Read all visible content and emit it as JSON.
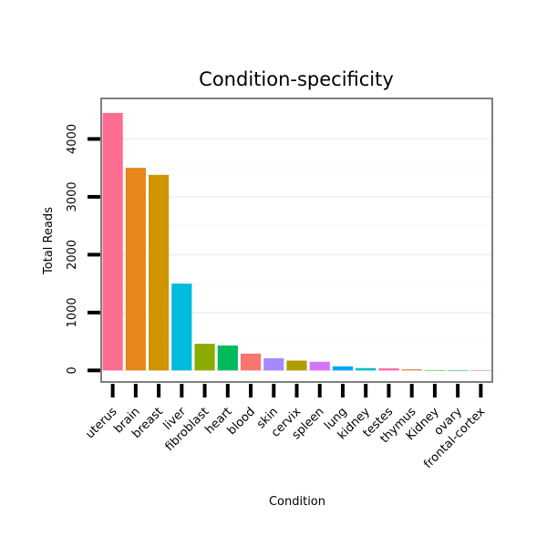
{
  "chart_data": {
    "type": "bar",
    "title": "Condition-specificity",
    "xlabel": "Condition",
    "ylabel": "Total Reads",
    "categories": [
      "uterus",
      "brain",
      "breast",
      "liver",
      "fibroblast",
      "heart",
      "blood",
      "skin",
      "cervix",
      "spleen",
      "lung",
      "kidney",
      "testes",
      "thymus",
      "Kidney",
      "ovary",
      "frontal-cortex"
    ],
    "values": [
      4450,
      3500,
      3380,
      1500,
      460,
      430,
      290,
      210,
      170,
      150,
      70,
      40,
      35,
      20,
      5,
      3,
      2
    ],
    "colors": [
      "#FF6C91",
      "#E7861A",
      "#CF9400",
      "#00BBDC",
      "#8CAB00",
      "#00BA5C",
      "#F8766D",
      "#A58AFF",
      "#B09C00",
      "#D575FE",
      "#00A5FF",
      "#00BFC4",
      "#FF66A8",
      "#EE8A43",
      "#3DB52C",
      "#00C08B",
      "#E76BF3"
    ],
    "ylim": [
      -200,
      4700
    ],
    "yticks": [
      0,
      1000,
      2000,
      3000,
      4000
    ],
    "grid": true,
    "legend": "none"
  }
}
